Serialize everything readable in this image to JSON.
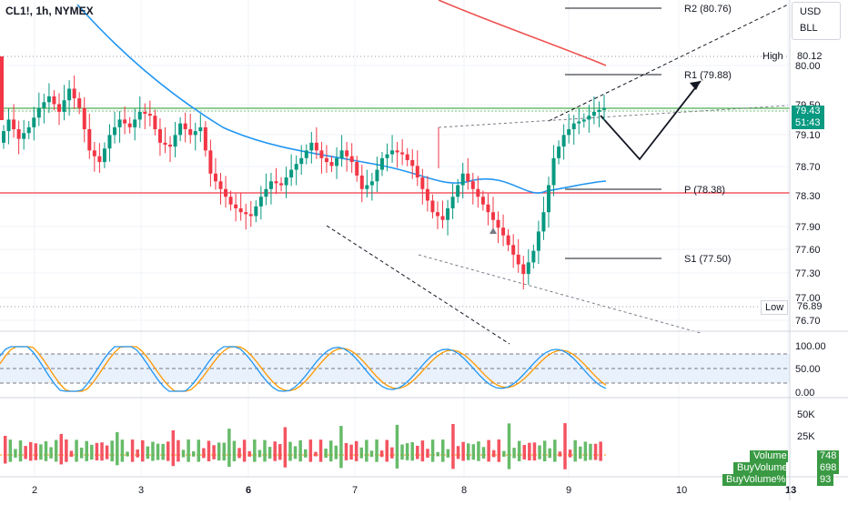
{
  "header": {
    "symbol": "CL1!, 1h, NYMEX"
  },
  "currency_box": {
    "currency": "USD",
    "unit": "BLL"
  },
  "price_panel": {
    "y_ticks": [
      "80.00",
      "79.50",
      "79.10",
      "78.70",
      "78.30",
      "77.90",
      "77.60",
      "77.30",
      "77.00",
      "76.70"
    ],
    "high": {
      "label": "High",
      "value": "80.12"
    },
    "low": {
      "label": "Low",
      "value": "76.89"
    },
    "last_price": "79.43",
    "countdown": "51:43",
    "pivots": [
      {
        "label": "R2 (80.76)",
        "value": 80.76
      },
      {
        "label": "R1 (79.88)",
        "value": 79.88
      },
      {
        "label": "P (78.38)",
        "value": 78.38
      },
      {
        "label": "S1 (77.50)",
        "value": 77.5
      }
    ]
  },
  "stoch_panel": {
    "y_ticks": [
      "100.00",
      "50.00",
      "0.00"
    ]
  },
  "volume_panel": {
    "y_ticks": [
      "50K",
      "25K",
      "K"
    ],
    "labels": [
      {
        "name": "Volume",
        "value": "748"
      },
      {
        "name": "BuyVolume",
        "value": "698"
      },
      {
        "name": "BuyVolume%",
        "value": "93"
      }
    ]
  },
  "x_axis": {
    "ticks": [
      "2",
      "3",
      "6",
      "7",
      "8",
      "9",
      "10",
      "13"
    ],
    "bold_ticks": [
      "6",
      "13"
    ]
  },
  "colors": {
    "up": "#089981",
    "down": "#f23645",
    "ma_blue": "#2196f3",
    "ma_red": "#ef5350",
    "stoch_orange": "#ff9800",
    "green_line": "#4caf50"
  },
  "chart_data": {
    "type": "candlestick",
    "title": "CL1!, 1h, NYMEX",
    "ylim": [
      76.5,
      80.9
    ],
    "high": 80.12,
    "low": 76.89,
    "last": 79.43,
    "key_levels": [
      79.45,
      78.35
    ],
    "candles_close_approx": [
      79.3,
      79.05,
      79.2,
      79.45,
      79.6,
      79.4,
      79.7,
      79.45,
      78.9,
      78.75,
      79.1,
      79.3,
      79.2,
      79.4,
      79.35,
      79.0,
      78.95,
      79.25,
      79.1,
      79.2,
      78.6,
      78.4,
      78.2,
      78.1,
      78.05,
      78.3,
      78.5,
      78.45,
      78.65,
      78.8,
      79.0,
      78.8,
      78.7,
      78.9,
      78.75,
      78.4,
      78.5,
      78.8,
      78.9,
      78.85,
      78.7,
      78.4,
      78.1,
      78.0,
      78.3,
      78.6,
      78.4,
      78.2,
      78.0,
      77.8,
      77.55,
      77.3,
      77.6,
      78.1,
      78.8,
      79.1,
      79.25,
      79.3,
      79.4,
      79.45
    ],
    "stochastic": {
      "ylim": [
        0,
        100
      ],
      "bands": [
        20,
        50,
        80
      ]
    },
    "volume": {
      "ylim": [
        0,
        50000
      ]
    }
  }
}
